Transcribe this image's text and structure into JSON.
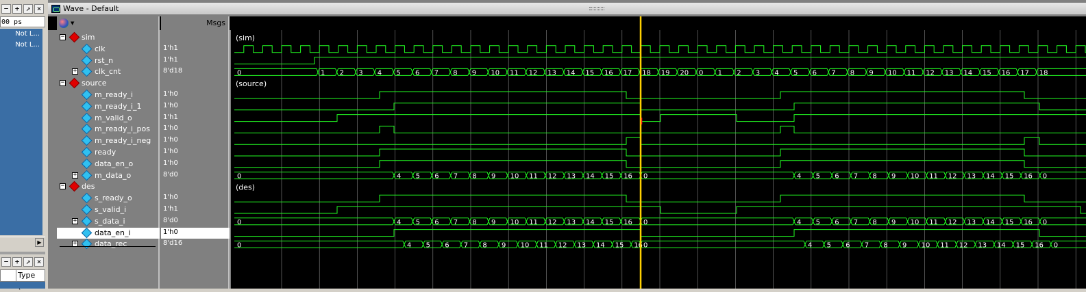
{
  "left_panel": {
    "time_unit": "00 ps",
    "rows": [
      "Not L...",
      "Not L..."
    ],
    "column_header": "Type (fil"
  },
  "window": {
    "title": "Wave - Default"
  },
  "header": {
    "msgs_label": "Msgs"
  },
  "signals": [
    {
      "name": "sim",
      "value": "",
      "kind": "group",
      "expanded": true,
      "level": 0
    },
    {
      "name": "clk",
      "value": "1'h1",
      "kind": "clock",
      "level": 1
    },
    {
      "name": "rst_n",
      "value": "1'h1",
      "kind": "clock",
      "level": 1
    },
    {
      "name": "clk_cnt",
      "value": "8'd18",
      "kind": "bus",
      "level": 1
    },
    {
      "name": "source",
      "value": "",
      "kind": "group",
      "expanded": true,
      "level": 0
    },
    {
      "name": "m_ready_i",
      "value": "1'h0",
      "kind": "bit",
      "level": 1
    },
    {
      "name": "m_ready_i_1",
      "value": "1'h0",
      "kind": "bit",
      "level": 1
    },
    {
      "name": "m_valid_o",
      "value": "1'h1",
      "kind": "bit",
      "level": 1
    },
    {
      "name": "m_ready_i_pos",
      "value": "1'h0",
      "kind": "bit",
      "level": 1
    },
    {
      "name": "m_ready_i_neg",
      "value": "1'h0",
      "kind": "bit",
      "level": 1
    },
    {
      "name": "ready",
      "value": "1'h0",
      "kind": "bit",
      "level": 1
    },
    {
      "name": "data_en_o",
      "value": "1'h0",
      "kind": "bit",
      "level": 1
    },
    {
      "name": "m_data_o",
      "value": "8'd0",
      "kind": "bus",
      "level": 1
    },
    {
      "name": "des",
      "value": "",
      "kind": "group",
      "expanded": true,
      "level": 0
    },
    {
      "name": "s_ready_o",
      "value": "1'h0",
      "kind": "bit",
      "level": 1
    },
    {
      "name": "s_valid_i",
      "value": "1'h1",
      "kind": "bit",
      "level": 1
    },
    {
      "name": "s_data_i",
      "value": "8'd0",
      "kind": "bus",
      "level": 1
    },
    {
      "name": "data_en_i",
      "value": "1'h0",
      "kind": "bit",
      "level": 1,
      "selected": true
    },
    {
      "name": "data_rec",
      "value": "8'd16",
      "kind": "bus",
      "level": 0
    }
  ],
  "group_labels": {
    "sim": "(sim)",
    "source": "(source)",
    "des": "(des)"
  },
  "waves": {
    "clk_period": 27.6,
    "clk_cnt_labels": [
      "0",
      "1",
      "2",
      "3",
      "4",
      "5",
      "6",
      "7",
      "8",
      "9",
      "10",
      "11",
      "12",
      "13",
      "14",
      "15",
      "16",
      "17",
      "18",
      "19",
      "20",
      "0",
      "1",
      "2",
      "3",
      "4",
      "5",
      "6",
      "7",
      "8",
      "9",
      "10",
      "11",
      "12",
      "13",
      "14",
      "15",
      "16",
      "17",
      "18"
    ],
    "m_data_o_labels": [
      "0",
      "4",
      "5",
      "6",
      "7",
      "8",
      "9",
      "10",
      "11",
      "12",
      "13",
      "14",
      "15",
      "16",
      "0",
      "4",
      "5",
      "6",
      "7",
      "8",
      "9",
      "10",
      "11",
      "12",
      "13",
      "14",
      "15",
      "16",
      "0"
    ],
    "s_data_i_labels": [
      "0",
      "4",
      "5",
      "6",
      "7",
      "8",
      "9",
      "10",
      "11",
      "12",
      "13",
      "14",
      "15",
      "16",
      "0",
      "4",
      "5",
      "6",
      "7",
      "8",
      "9",
      "10",
      "11",
      "12",
      "13",
      "14",
      "15",
      "16",
      "0"
    ],
    "data_rec_labels": [
      "0",
      "4",
      "5",
      "6",
      "7",
      "8",
      "9",
      "10",
      "11",
      "12",
      "13",
      "14",
      "15",
      "16",
      "0",
      "4",
      "5",
      "6",
      "7",
      "8",
      "9",
      "10",
      "11",
      "12",
      "13",
      "14",
      "15",
      "16",
      "0"
    ]
  },
  "colors": {
    "wave": "#22ff22",
    "cursor": "#ffd000",
    "grid": "#8a8a8a",
    "wave_bg": "#000000",
    "pane_bg": "#808080",
    "selected_bg": "#ffffff"
  }
}
